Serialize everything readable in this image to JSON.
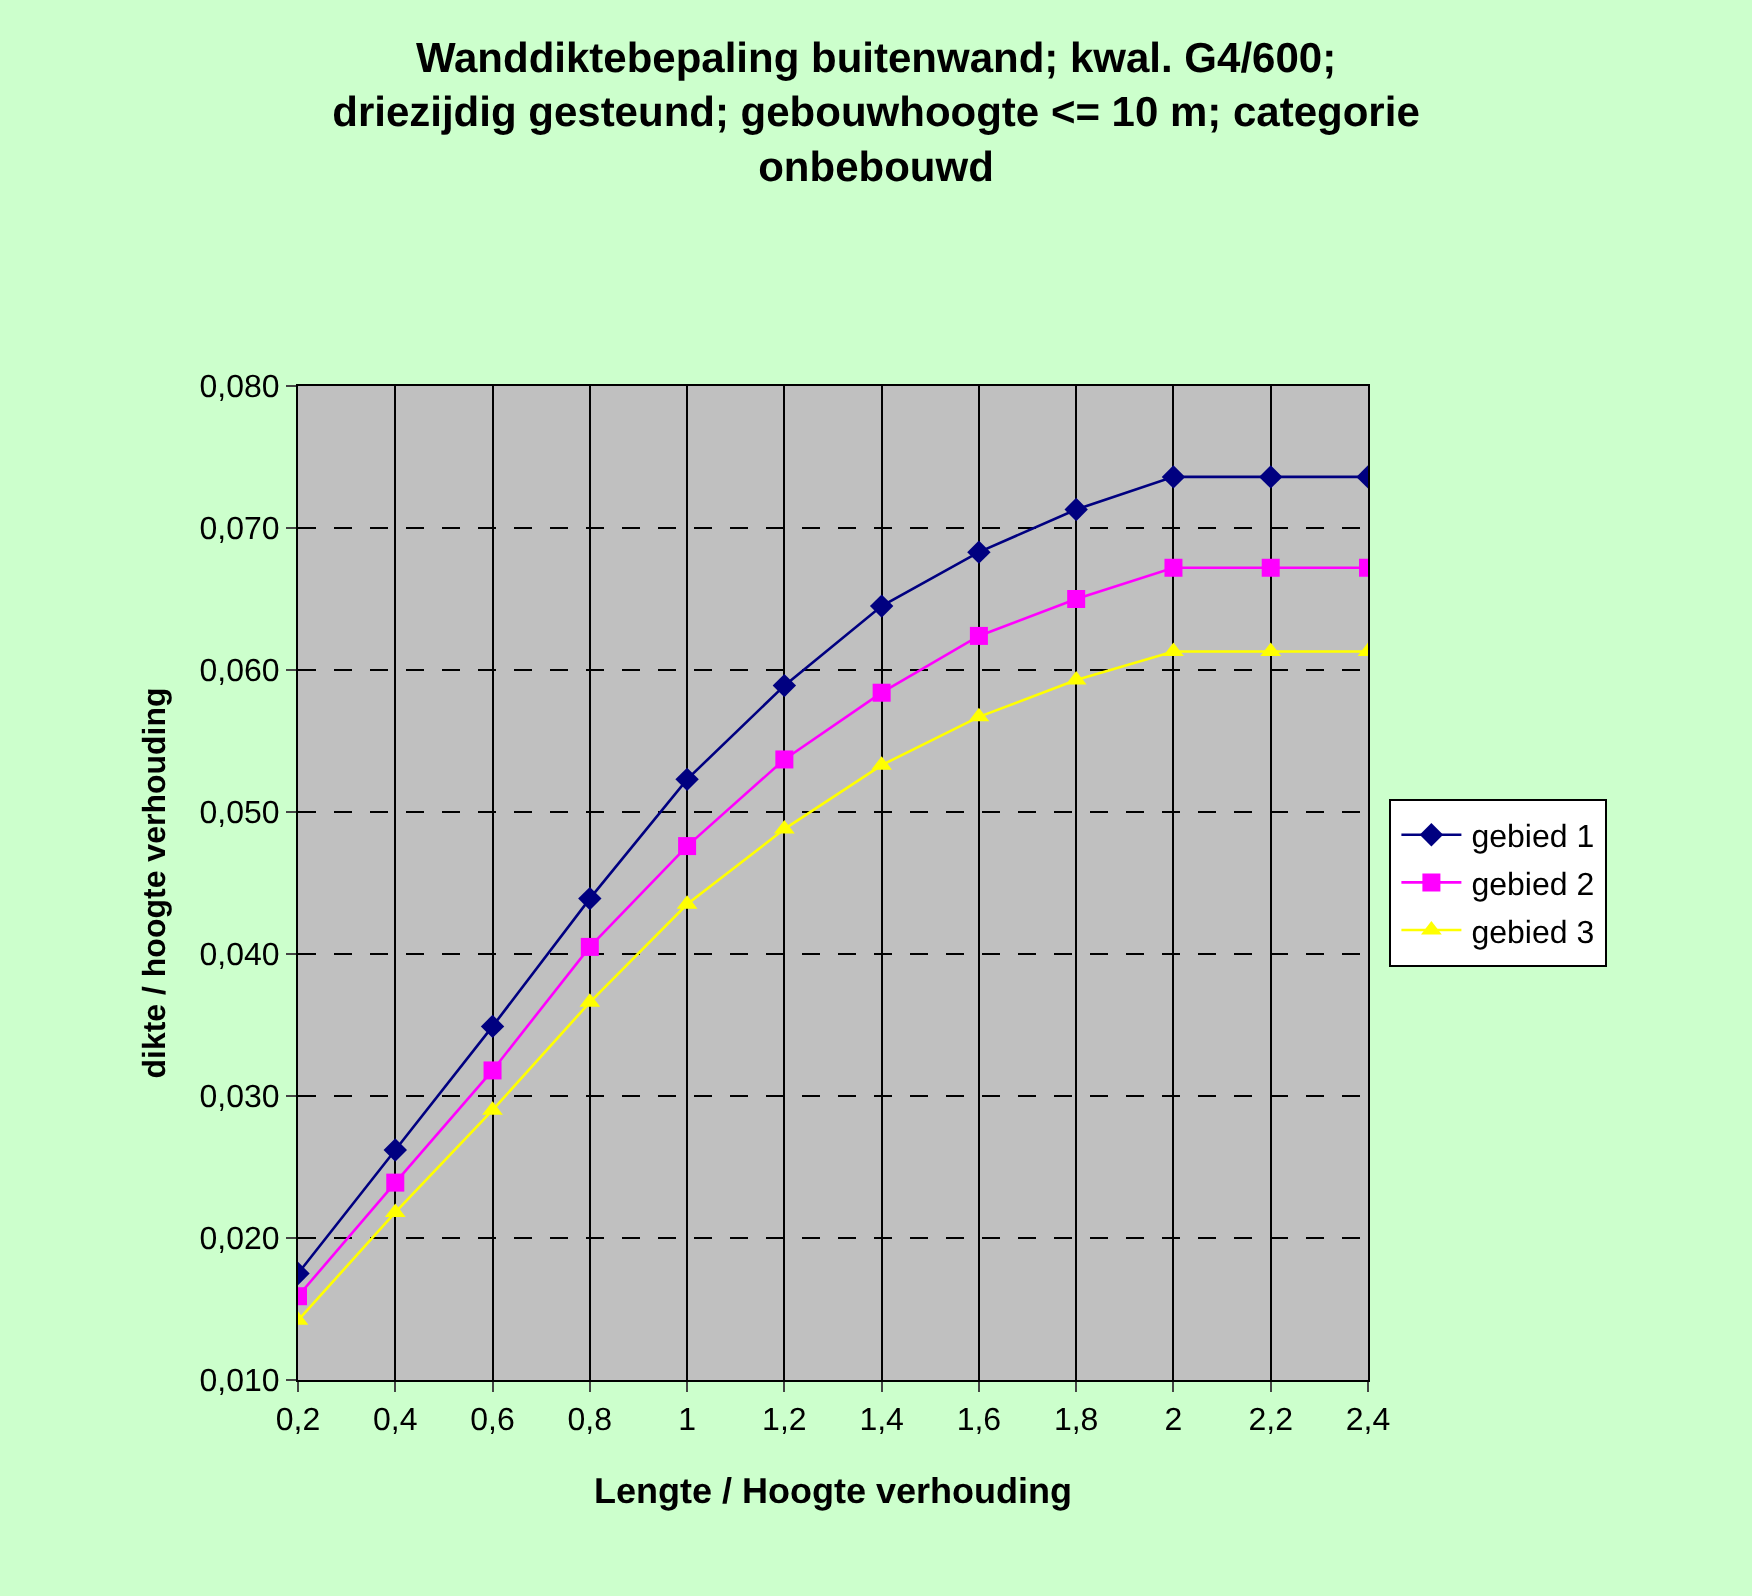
{
  "chart_data": {
    "type": "line",
    "title": "Wanddiktebepaling buitenwand; kwal. G4/600;\ndriezijdig gesteund; gebouwhoogte <= 10 m; categorie\nonbebouwd",
    "xlabel": "Lengte / Hoogte verhouding",
    "ylabel": "dikte / hoogte verhouding",
    "categories": [
      "0,2",
      "0,4",
      "0,6",
      "0,8",
      "1",
      "1,2",
      "1,4",
      "1,6",
      "1,8",
      "2",
      "2,2",
      "2,4"
    ],
    "series": [
      {
        "name": "gebied 1",
        "color": "#000080",
        "marker": "diamond",
        "values": [
          0.0175,
          0.0262,
          0.0349,
          0.0439,
          0.0523,
          0.0589,
          0.0645,
          0.0683,
          0.0713,
          0.0736,
          0.0736,
          0.0736
        ]
      },
      {
        "name": "gebied 2",
        "color": "#ff00ff",
        "marker": "square",
        "values": [
          0.0159,
          0.0239,
          0.0318,
          0.0405,
          0.0476,
          0.0537,
          0.0584,
          0.0624,
          0.065,
          0.0672,
          0.0672,
          0.0672
        ]
      },
      {
        "name": "gebied 3",
        "color": "#ffff00",
        "marker": "triangle",
        "values": [
          0.0142,
          0.0218,
          0.029,
          0.0366,
          0.0435,
          0.0488,
          0.0533,
          0.0567,
          0.0593,
          0.0613,
          0.0613,
          0.0613
        ]
      }
    ],
    "ylim": [
      0.01,
      0.08
    ],
    "yticks": [
      {
        "value": 0.01,
        "label": "0,010"
      },
      {
        "value": 0.02,
        "label": "0,020"
      },
      {
        "value": 0.03,
        "label": "0,030"
      },
      {
        "value": 0.04,
        "label": "0,040"
      },
      {
        "value": 0.05,
        "label": "0,050"
      },
      {
        "value": 0.06,
        "label": "0,060"
      },
      {
        "value": 0.07,
        "label": "0,070"
      },
      {
        "value": 0.08,
        "label": "0,080"
      }
    ],
    "grid": true,
    "legend": "right",
    "line_style": "solid"
  }
}
